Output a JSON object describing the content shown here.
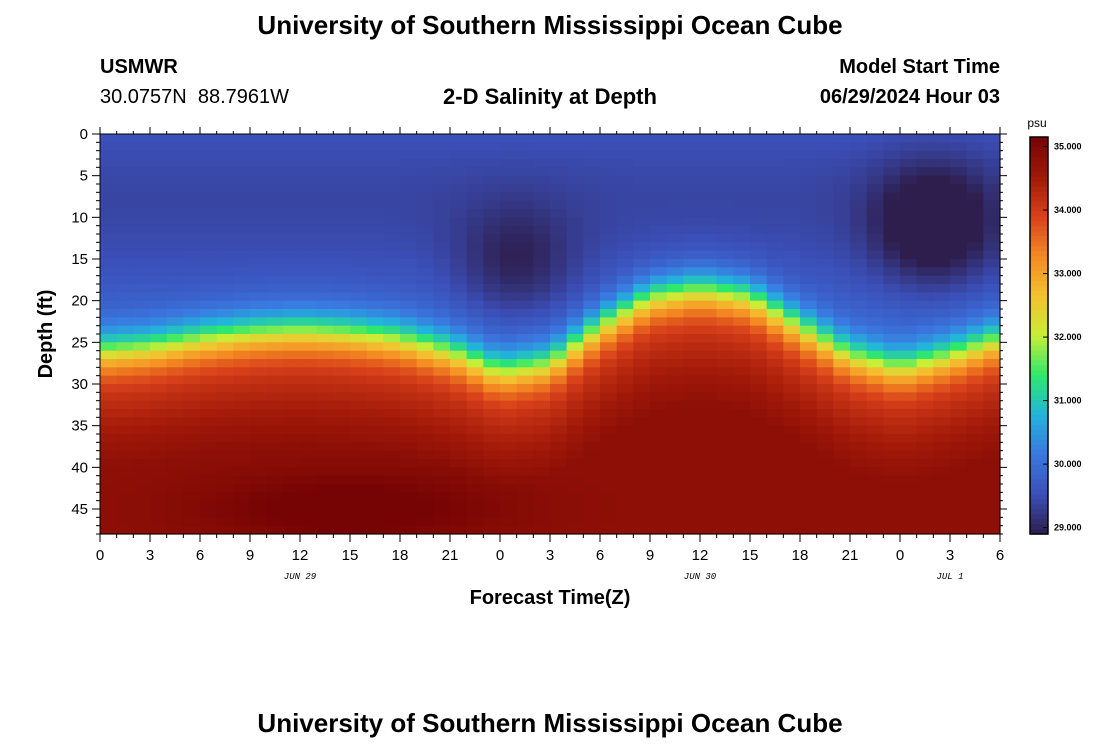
{
  "header": {
    "title": "University of Southern Mississippi Ocean Cube",
    "station_id": "USMWR",
    "station_coords": "30.0757N  88.7961W",
    "subtitle": "2-D Salinity at Depth",
    "model_start_label": "Model Start Time",
    "model_start_value": "06/29/2024 Hour 03"
  },
  "footer": {
    "title": "University of Southern Mississippi Ocean Cube"
  },
  "chart_data": {
    "type": "heatmap",
    "title": "2-D Salinity at Depth",
    "xlabel": "Forecast Time(Z)",
    "ylabel": "Depth (ft)",
    "x_tick_labels": [
      "0",
      "3",
      "6",
      "9",
      "12",
      "15",
      "18",
      "21",
      "0",
      "3",
      "6",
      "9",
      "12",
      "15",
      "18",
      "21",
      "0",
      "3",
      "6"
    ],
    "x_hours": [
      0,
      3,
      6,
      9,
      12,
      15,
      18,
      21,
      24,
      27,
      30,
      33,
      36,
      39,
      42,
      45,
      48,
      51,
      54
    ],
    "xlim_hours": [
      0,
      54
    ],
    "date_labels": [
      {
        "text": "JUN 29",
        "hour": 12
      },
      {
        "text": "JUN 30",
        "hour": 36
      },
      {
        "text": "JUL 1",
        "hour": 51
      }
    ],
    "y_tick_labels": [
      "0",
      "5",
      "10",
      "15",
      "20",
      "25",
      "30",
      "35",
      "40",
      "45"
    ],
    "y_ticks": [
      0,
      5,
      10,
      15,
      20,
      25,
      30,
      35,
      40,
      45
    ],
    "ylim": [
      0,
      48
    ],
    "y_inverted": true,
    "colorbar": {
      "unit": "psu",
      "min": 28.9,
      "max": 35.15,
      "tick_values": [
        29,
        30,
        31,
        32,
        33,
        34,
        35
      ],
      "tick_labels": [
        "29.000",
        "30.000",
        "31.000",
        "32.000",
        "33.000",
        "34.000",
        "35.000"
      ],
      "colors": [
        "#2e1e4e",
        "#3b4fb8",
        "#3a78e0",
        "#22b4dc",
        "#2ee86a",
        "#c8ee36",
        "#f4c030",
        "#f48a22",
        "#d8401a",
        "#a01808",
        "#760404"
      ]
    },
    "halocline_depth_ft": {
      "hours": [
        0,
        3,
        6,
        9,
        12,
        15,
        18,
        21,
        24,
        27,
        30,
        33,
        36,
        39,
        42,
        45,
        48,
        51,
        54
      ],
      "values": [
        26,
        25.5,
        24.5,
        23.8,
        23.5,
        23.8,
        24.5,
        26,
        28.5,
        27.5,
        23,
        19.5,
        18.5,
        19.5,
        23,
        26.5,
        28,
        26.5,
        24.5
      ]
    },
    "surface_low_salinity_cores": [
      {
        "hour": 25,
        "depth_ft": 16,
        "psu": 29.4
      },
      {
        "hour": 50,
        "depth_ft": 11,
        "psu": 29.0
      }
    ],
    "bottom_high_salinity_core": {
      "hour": 15,
      "depth_ft": 45,
      "psu": 35.1
    }
  }
}
